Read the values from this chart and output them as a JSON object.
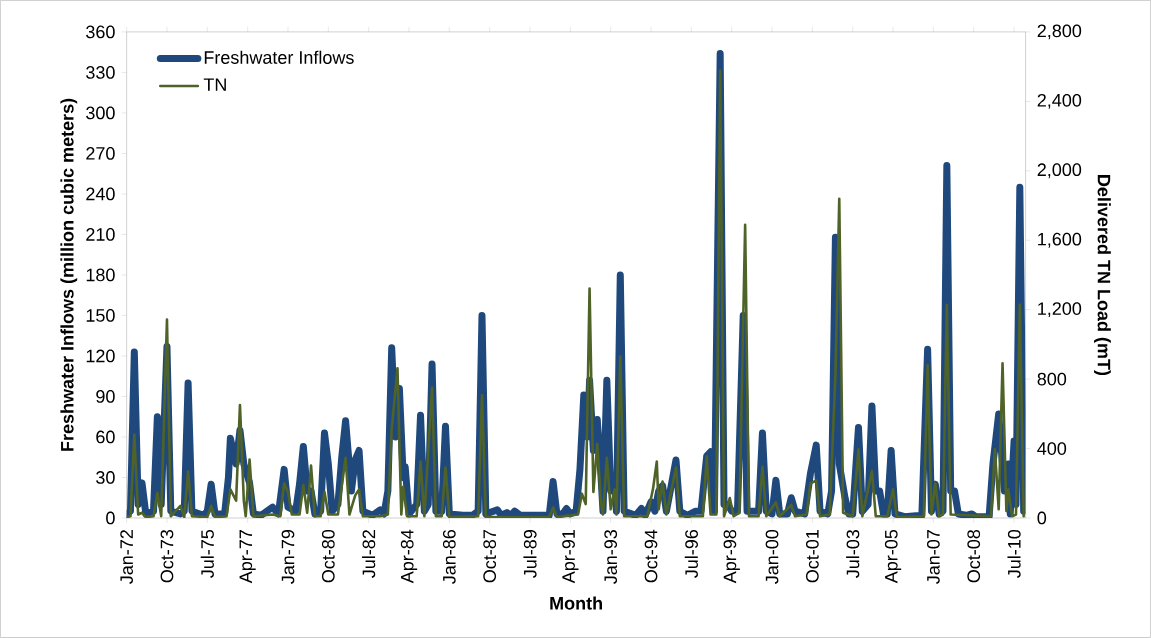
{
  "chart_data": {
    "type": "line",
    "xlabel": "Month",
    "ylabel": "Freshwater Inflows (million cubic meters)",
    "y2label": "Delivered TN Load (mT)",
    "xlim": [
      "1972-01",
      "2011-01"
    ],
    "xticks": [
      {
        "value": "1972-01",
        "label": "Jan-72"
      },
      {
        "value": "1973-10",
        "label": "Oct-73"
      },
      {
        "value": "1975-07",
        "label": "Jul-75"
      },
      {
        "value": "1977-04",
        "label": "Apr-77"
      },
      {
        "value": "1979-01",
        "label": "Jan-79"
      },
      {
        "value": "1980-10",
        "label": "Oct-80"
      },
      {
        "value": "1982-07",
        "label": "Jul-82"
      },
      {
        "value": "1984-04",
        "label": "Apr-84"
      },
      {
        "value": "1986-01",
        "label": "Jan-86"
      },
      {
        "value": "1987-10",
        "label": "Oct-87"
      },
      {
        "value": "1989-07",
        "label": "Jul-89"
      },
      {
        "value": "1991-04",
        "label": "Apr-91"
      },
      {
        "value": "1993-01",
        "label": "Jan-93"
      },
      {
        "value": "1994-10",
        "label": "Oct-94"
      },
      {
        "value": "1996-07",
        "label": "Jul-96"
      },
      {
        "value": "1998-04",
        "label": "Apr-98"
      },
      {
        "value": "2000-01",
        "label": "Jan-00"
      },
      {
        "value": "2001-10",
        "label": "Oct-01"
      },
      {
        "value": "2003-07",
        "label": "Jul-03"
      },
      {
        "value": "2005-04",
        "label": "Apr-05"
      },
      {
        "value": "2007-01",
        "label": "Jan-07"
      },
      {
        "value": "2008-10",
        "label": "Oct-08"
      },
      {
        "value": "2010-07",
        "label": "Jul-10"
      }
    ],
    "ylim": [
      0,
      360
    ],
    "yticks": [
      0,
      30,
      60,
      90,
      120,
      150,
      180,
      210,
      240,
      270,
      300,
      330,
      360
    ],
    "y2lim": [
      0,
      2800
    ],
    "y2ticks": [
      0,
      400,
      800,
      {
        "value": 1200,
        "label": "1,200"
      },
      {
        "value": 1600,
        "label": "1,600"
      },
      {
        "value": 2000,
        "label": "2,000"
      },
      {
        "value": 2400,
        "label": "2,400"
      },
      {
        "value": 2800,
        "label": "2,800"
      }
    ],
    "legend": "top left",
    "series": [
      {
        "name": "Freshwater Inflows",
        "color": "#1f497d",
        "x": [
          "1972-01",
          "1972-03",
          "1972-05",
          "1972-07",
          "1972-09",
          "1972-11",
          "1973-03",
          "1973-05",
          "1973-07",
          "1973-10",
          "1973-12",
          "1974-05",
          "1974-07",
          "1974-09",
          "1974-11",
          "1975-05",
          "1975-07",
          "1975-09",
          "1975-11",
          "1976-04",
          "1976-06",
          "1976-07",
          "1976-10",
          "1976-12",
          "1977-02",
          "1977-05",
          "1977-07",
          "1977-11",
          "1978-05",
          "1978-08",
          "1978-11",
          "1979-01",
          "1979-05",
          "1979-07",
          "1979-09",
          "1979-11",
          "1980-01",
          "1980-03",
          "1980-06",
          "1980-08",
          "1980-10",
          "1980-12",
          "1981-03",
          "1981-05",
          "1981-07",
          "1981-10",
          "1981-12",
          "1982-02",
          "1982-04",
          "1982-09",
          "1983-01",
          "1983-03",
          "1983-05",
          "1983-07",
          "1983-09",
          "1983-11",
          "1984-01",
          "1984-02",
          "1984-04",
          "1984-08",
          "1984-10",
          "1984-12",
          "1985-02",
          "1985-04",
          "1985-06",
          "1985-09",
          "1985-11",
          "1986-01",
          "1986-08",
          "1987-01",
          "1987-04",
          "1987-06",
          "1987-08",
          "1988-02",
          "1988-04",
          "1988-07",
          "1988-09",
          "1988-11",
          "1989-02",
          "1989-12",
          "1990-05",
          "1990-07",
          "1990-09",
          "1990-12",
          "1991-02",
          "1991-04",
          "1991-07",
          "1991-09",
          "1991-11",
          "1992-01",
          "1992-02",
          "1992-04",
          "1992-06",
          "1992-08",
          "1992-09",
          "1992-11",
          "1993-01",
          "1993-03",
          "1993-04",
          "1993-06",
          "1993-08",
          "1994-02",
          "1994-05",
          "1994-07",
          "1994-10",
          "1994-12",
          "1995-02",
          "1995-04",
          "1995-06",
          "1995-08",
          "1995-11",
          "1996-01",
          "1996-05",
          "1996-09",
          "1996-12",
          "1997-03",
          "1997-05",
          "1997-07",
          "1997-10",
          "1997-12",
          "1998-02",
          "1998-04",
          "1998-07",
          "1998-10",
          "1998-12",
          "1999-06",
          "1999-08",
          "1999-10",
          "2000-01",
          "2000-03",
          "2000-05",
          "2000-09",
          "2000-11",
          "2001-01",
          "2001-06",
          "2001-09",
          "2001-12",
          "2002-02",
          "2002-06",
          "2002-08",
          "2002-10",
          "2002-12",
          "2003-03",
          "2003-05",
          "2003-07",
          "2003-10",
          "2003-12",
          "2004-03",
          "2004-05",
          "2004-07",
          "2004-09",
          "2004-11",
          "2005-01",
          "2005-03",
          "2005-05",
          "2005-10",
          "2006-07",
          "2006-10",
          "2006-12",
          "2007-02",
          "2007-04",
          "2007-06",
          "2007-08",
          "2007-10",
          "2007-12",
          "2008-02",
          "2008-06",
          "2008-09",
          "2008-11",
          "2009-06",
          "2009-08",
          "2009-11",
          "2010-02",
          "2010-04",
          "2010-05",
          "2010-07",
          "2010-08",
          "2010-10",
          "2010-12"
        ],
        "values": [
          3,
          5,
          123,
          10,
          26,
          3,
          5,
          75,
          10,
          127,
          5,
          3,
          5,
          100,
          5,
          2,
          5,
          25,
          3,
          3,
          30,
          59,
          40,
          65,
          40,
          26,
          3,
          2,
          8,
          3,
          36,
          8,
          5,
          25,
          53,
          20,
          20,
          3,
          5,
          63,
          40,
          5,
          10,
          45,
          72,
          20,
          43,
          50,
          5,
          2,
          6,
          3,
          20,
          126,
          60,
          96,
          30,
          38,
          3,
          10,
          76,
          5,
          10,
          114,
          5,
          5,
          68,
          3,
          2,
          2,
          5,
          150,
          3,
          6,
          2,
          4,
          2,
          5,
          2,
          2,
          2,
          27,
          3,
          3,
          7,
          3,
          5,
          36,
          91,
          60,
          102,
          50,
          73,
          30,
          5,
          102,
          20,
          25,
          5,
          180,
          5,
          2,
          7,
          2,
          12,
          5,
          20,
          24,
          5,
          20,
          43,
          5,
          2,
          5,
          5,
          46,
          49,
          5,
          344,
          10,
          10,
          5,
          5,
          150,
          5,
          5,
          63,
          5,
          3,
          28,
          3,
          3,
          15,
          5,
          3,
          33,
          54,
          5,
          3,
          20,
          208,
          40,
          15,
          3,
          3,
          67,
          5,
          10,
          83,
          20,
          20,
          3,
          3,
          50,
          3,
          1,
          2,
          125,
          5,
          25,
          3,
          5,
          261,
          20,
          20,
          3,
          2,
          3,
          1,
          1,
          40,
          77,
          20,
          40,
          3,
          57,
          10,
          245,
          5
        ]
      },
      {
        "name": "TN",
        "color": "#4f6228",
        "axis": "y2",
        "x": [
          "1972-01",
          "1972-03",
          "1972-05",
          "1972-07",
          "1972-09",
          "1972-11",
          "1973-03",
          "1973-05",
          "1973-07",
          "1973-10",
          "1973-12",
          "1974-05",
          "1974-07",
          "1974-09",
          "1974-11",
          "1975-07",
          "1975-09",
          "1975-11",
          "1976-05",
          "1976-07",
          "1976-10",
          "1976-12",
          "1977-02",
          "1977-03",
          "1977-05",
          "1977-07",
          "1978-05",
          "1978-09",
          "1978-11",
          "1979-01",
          "1979-03",
          "1979-07",
          "1979-09",
          "1979-11",
          "1980-01",
          "1980-03",
          "1980-06",
          "1980-08",
          "1980-10",
          "1981-03",
          "1981-07",
          "1981-09",
          "1981-12",
          "1982-02",
          "1982-04",
          "1983-01",
          "1983-05",
          "1983-07",
          "1983-10",
          "1983-12",
          "1984-01",
          "1984-03",
          "1984-08",
          "1984-10",
          "1984-12",
          "1985-04",
          "1985-06",
          "1985-09",
          "1985-11",
          "1986-01",
          "1987-04",
          "1987-06",
          "1987-08",
          "1990-05",
          "1990-07",
          "1990-09",
          "1991-08",
          "1991-10",
          "1991-12",
          "1992-02",
          "1992-04",
          "1992-06",
          "1992-08",
          "1992-09",
          "1992-11",
          "1993-01",
          "1993-03",
          "1993-04",
          "1993-06",
          "1993-08",
          "1994-08",
          "1994-11",
          "1995-01",
          "1995-02",
          "1995-04",
          "1995-06",
          "1995-11",
          "1996-01",
          "1997-01",
          "1997-03",
          "1997-05",
          "1997-08",
          "1997-10",
          "1997-12",
          "1998-03",
          "1998-05",
          "1998-08",
          "1998-11",
          "1999-01",
          "1999-06",
          "1999-08",
          "1999-10",
          "2000-03",
          "2000-05",
          "2000-11",
          "2001-01",
          "2001-07",
          "2001-09",
          "2001-12",
          "2002-02",
          "2002-07",
          "2002-10",
          "2002-12",
          "2003-02",
          "2003-07",
          "2003-10",
          "2003-12",
          "2004-05",
          "2004-07",
          "2005-01",
          "2005-04",
          "2005-06",
          "2006-08",
          "2006-10",
          "2006-12",
          "2007-02",
          "2007-04",
          "2007-06",
          "2007-08",
          "2007-10",
          "2009-07",
          "2009-09",
          "2009-11",
          "2010-01",
          "2010-03",
          "2010-04",
          "2010-06",
          "2010-08",
          "2010-10",
          "2010-12"
        ],
        "values": [
          5,
          10,
          481,
          20,
          30,
          5,
          10,
          145,
          10,
          1143,
          10,
          70,
          5,
          268,
          10,
          5,
          70,
          5,
          10,
          165,
          100,
          650,
          100,
          10,
          336,
          10,
          20,
          10,
          200,
          150,
          20,
          20,
          190,
          30,
          302,
          10,
          10,
          150,
          20,
          20,
          347,
          20,
          130,
          165,
          10,
          10,
          20,
          515,
          862,
          20,
          180,
          10,
          10,
          325,
          10,
          751,
          10,
          10,
          291,
          5,
          10,
          706,
          5,
          5,
          60,
          5,
          20,
          140,
          80,
          1322,
          150,
          426,
          80,
          20,
          347,
          50,
          165,
          20,
          930,
          10,
          10,
          165,
          325,
          50,
          210,
          20,
          291,
          10,
          10,
          355,
          20,
          20,
          2577,
          10,
          115,
          10,
          30,
          1689,
          10,
          10,
          295,
          10,
          90,
          10,
          75,
          10,
          20,
          200,
          215,
          10,
          20,
          823,
          1839,
          30,
          10,
          396,
          10,
          270,
          10,
          10,
          165,
          5,
          10,
          879,
          20,
          200,
          10,
          20,
          1228,
          20,
          10,
          396,
          50,
          891,
          40,
          165,
          10,
          20,
          1228,
          10
        ]
      }
    ]
  }
}
